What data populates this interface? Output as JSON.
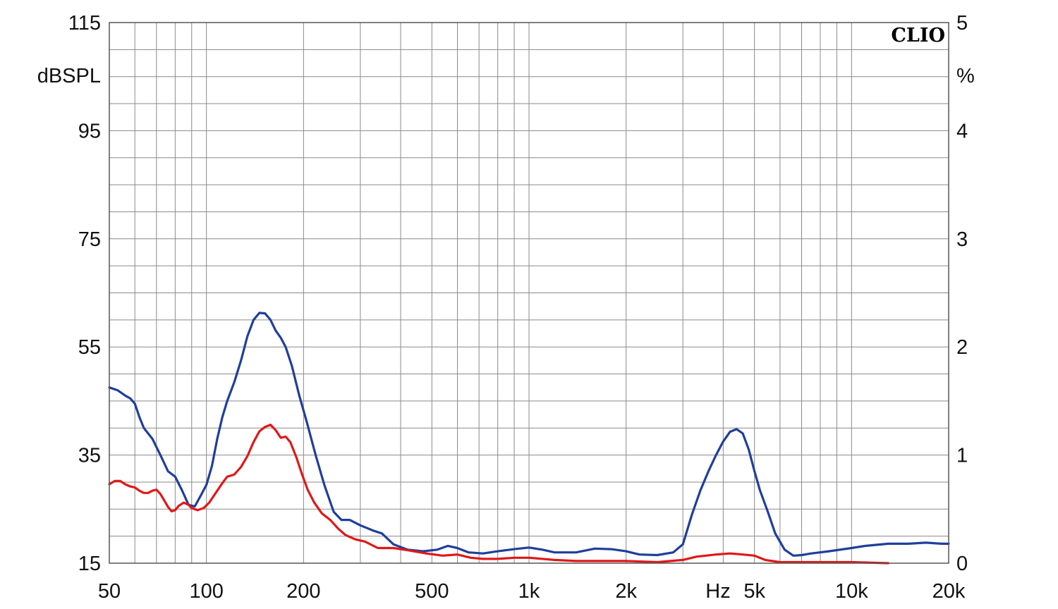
{
  "chart_data": {
    "type": "line",
    "brand": "CLIO",
    "xlabel": "Hz",
    "ylabel_left": "dBSPL",
    "ylabel_right": "%",
    "x_scale": "log",
    "xlim": [
      50,
      20000
    ],
    "ylim_left": [
      15,
      115
    ],
    "ylim_right": [
      0,
      5
    ],
    "x_ticks": [
      {
        "value": 50,
        "label": "50"
      },
      {
        "value": 100,
        "label": "100"
      },
      {
        "value": 200,
        "label": "200"
      },
      {
        "value": 500,
        "label": "500"
      },
      {
        "value": 1000,
        "label": "1k"
      },
      {
        "value": 2000,
        "label": "2k"
      },
      {
        "value": 5000,
        "label": "5k"
      },
      {
        "value": 10000,
        "label": "10k"
      },
      {
        "value": 20000,
        "label": "20k"
      }
    ],
    "y_ticks_left": [
      {
        "value": 115,
        "label": "115"
      },
      {
        "value": 95,
        "label": "95"
      },
      {
        "value": 75,
        "label": "75"
      },
      {
        "value": 55,
        "label": "55"
      },
      {
        "value": 35,
        "label": "35"
      },
      {
        "value": 15,
        "label": "15"
      }
    ],
    "y_ticks_right": [
      {
        "value": 5,
        "label": "5"
      },
      {
        "value": 4,
        "label": "4"
      },
      {
        "value": 3,
        "label": "3"
      },
      {
        "value": 2,
        "label": "2"
      },
      {
        "value": 1,
        "label": "1"
      },
      {
        "value": 0,
        "label": "0"
      }
    ],
    "grid": true,
    "series": [
      {
        "color": "#1f3f9a",
        "axis": "left",
        "points": [
          [
            50,
            47.5
          ],
          [
            53,
            47
          ],
          [
            56,
            46
          ],
          [
            58,
            45.5
          ],
          [
            60,
            44.5
          ],
          [
            62,
            42
          ],
          [
            64,
            40
          ],
          [
            68,
            38
          ],
          [
            72,
            35
          ],
          [
            76,
            32
          ],
          [
            80,
            31
          ],
          [
            84,
            28.5
          ],
          [
            88,
            25.8
          ],
          [
            92,
            25.5
          ],
          [
            96,
            27.5
          ],
          [
            100,
            29.5
          ],
          [
            104,
            33
          ],
          [
            108,
            38
          ],
          [
            112,
            42
          ],
          [
            116,
            45
          ],
          [
            122,
            48.5
          ],
          [
            128,
            52.5
          ],
          [
            134,
            57
          ],
          [
            140,
            60
          ],
          [
            146,
            61.3
          ],
          [
            152,
            61.2
          ],
          [
            158,
            60
          ],
          [
            164,
            58
          ],
          [
            170,
            56.7
          ],
          [
            176,
            55
          ],
          [
            184,
            51.5
          ],
          [
            194,
            46
          ],
          [
            205,
            41
          ],
          [
            218,
            35
          ],
          [
            232,
            29.5
          ],
          [
            248,
            24.5
          ],
          [
            262,
            23
          ],
          [
            278,
            23
          ],
          [
            300,
            22
          ],
          [
            330,
            21
          ],
          [
            350,
            20.5
          ],
          [
            380,
            18.5
          ],
          [
            420,
            17.5
          ],
          [
            470,
            17.2
          ],
          [
            520,
            17.5
          ],
          [
            560,
            18.2
          ],
          [
            600,
            17.8
          ],
          [
            650,
            17
          ],
          [
            720,
            16.8
          ],
          [
            800,
            17.2
          ],
          [
            900,
            17.6
          ],
          [
            1000,
            17.9
          ],
          [
            1100,
            17.5
          ],
          [
            1200,
            17
          ],
          [
            1400,
            17
          ],
          [
            1600,
            17.7
          ],
          [
            1800,
            17.6
          ],
          [
            2000,
            17.2
          ],
          [
            2200,
            16.6
          ],
          [
            2500,
            16.5
          ],
          [
            2800,
            17
          ],
          [
            3000,
            18.5
          ],
          [
            3200,
            24
          ],
          [
            3400,
            28.5
          ],
          [
            3600,
            32
          ],
          [
            3800,
            35
          ],
          [
            4000,
            37.5
          ],
          [
            4200,
            39.3
          ],
          [
            4400,
            39.8
          ],
          [
            4600,
            39
          ],
          [
            4800,
            36
          ],
          [
            5000,
            32
          ],
          [
            5200,
            28.5
          ],
          [
            5500,
            24.5
          ],
          [
            5800,
            20.5
          ],
          [
            6200,
            17.5
          ],
          [
            6600,
            16.4
          ],
          [
            7000,
            16.5
          ],
          [
            7500,
            16.8
          ],
          [
            8500,
            17.2
          ],
          [
            10000,
            17.8
          ],
          [
            11000,
            18.2
          ],
          [
            13000,
            18.6
          ],
          [
            15000,
            18.6
          ],
          [
            17000,
            18.8
          ],
          [
            19000,
            18.6
          ],
          [
            20000,
            18.6
          ]
        ]
      },
      {
        "color": "#e01818",
        "axis": "right",
        "points": [
          [
            50,
            0.73
          ],
          [
            52,
            0.76
          ],
          [
            54,
            0.76
          ],
          [
            56,
            0.73
          ],
          [
            58,
            0.71
          ],
          [
            60,
            0.7
          ],
          [
            62,
            0.67
          ],
          [
            64,
            0.65
          ],
          [
            66,
            0.65
          ],
          [
            68,
            0.67
          ],
          [
            70,
            0.68
          ],
          [
            72,
            0.64
          ],
          [
            74,
            0.58
          ],
          [
            76,
            0.52
          ],
          [
            78,
            0.48
          ],
          [
            80,
            0.49
          ],
          [
            82,
            0.53
          ],
          [
            85,
            0.56
          ],
          [
            88,
            0.54
          ],
          [
            90,
            0.51
          ],
          [
            94,
            0.49
          ],
          [
            98,
            0.51
          ],
          [
            102,
            0.56
          ],
          [
            108,
            0.67
          ],
          [
            112,
            0.74
          ],
          [
            116,
            0.8
          ],
          [
            122,
            0.82
          ],
          [
            128,
            0.89
          ],
          [
            134,
            0.99
          ],
          [
            140,
            1.12
          ],
          [
            146,
            1.22
          ],
          [
            152,
            1.26
          ],
          [
            158,
            1.28
          ],
          [
            164,
            1.23
          ],
          [
            170,
            1.16
          ],
          [
            176,
            1.17
          ],
          [
            182,
            1.12
          ],
          [
            190,
            0.98
          ],
          [
            198,
            0.82
          ],
          [
            206,
            0.68
          ],
          [
            216,
            0.56
          ],
          [
            228,
            0.46
          ],
          [
            242,
            0.4
          ],
          [
            256,
            0.32
          ],
          [
            270,
            0.26
          ],
          [
            290,
            0.22
          ],
          [
            310,
            0.2
          ],
          [
            340,
            0.14
          ],
          [
            380,
            0.14
          ],
          [
            420,
            0.12
          ],
          [
            480,
            0.09
          ],
          [
            540,
            0.07
          ],
          [
            600,
            0.08
          ],
          [
            660,
            0.05
          ],
          [
            720,
            0.04
          ],
          [
            800,
            0.04
          ],
          [
            900,
            0.05
          ],
          [
            1000,
            0.05
          ],
          [
            1200,
            0.03
          ],
          [
            1400,
            0.02
          ],
          [
            2000,
            0.02
          ],
          [
            2500,
            0.01
          ],
          [
            3000,
            0.03
          ],
          [
            3300,
            0.06
          ],
          [
            3800,
            0.08
          ],
          [
            4200,
            0.09
          ],
          [
            4600,
            0.08
          ],
          [
            5000,
            0.07
          ],
          [
            5400,
            0.03
          ],
          [
            6000,
            0.01
          ],
          [
            8000,
            0.01
          ],
          [
            10000,
            0.01
          ],
          [
            13000,
            0.0
          ]
        ]
      }
    ]
  }
}
